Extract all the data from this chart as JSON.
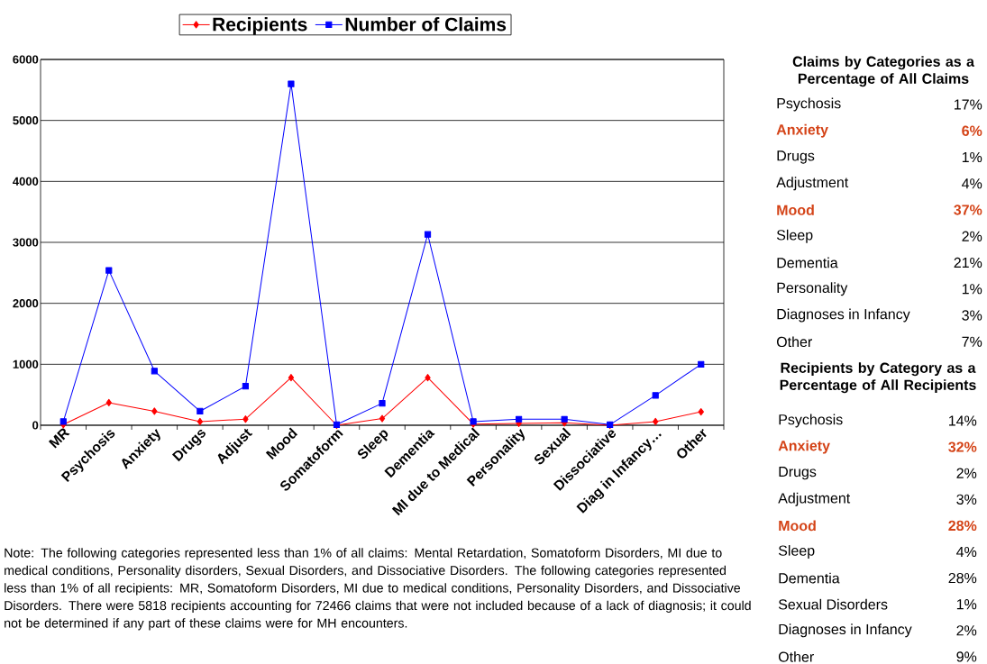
{
  "chart_data": [
    {
      "type": "line",
      "categories": [
        "MR",
        "Psychosis",
        "Anxiety",
        "Drugs",
        "Adjust",
        "Mood",
        "Somatoform",
        "Sleep",
        "Dementia",
        "MI due to Medical",
        "Personality",
        "Sexual",
        "Dissociative",
        "Diag in Infancy…",
        "Other"
      ],
      "series": [
        {
          "name": "Recipients",
          "color": "#ff0000",
          "marker": "diamond",
          "values": [
            10,
            370,
            230,
            60,
            100,
            780,
            0,
            110,
            780,
            20,
            30,
            40,
            0,
            60,
            220
          ]
        },
        {
          "name": "Number of Claims",
          "color": "#0000ff",
          "marker": "square",
          "values": [
            60,
            2540,
            890,
            230,
            640,
            5600,
            10,
            360,
            3130,
            60,
            100,
            100,
            10,
            490,
            1000
          ]
        }
      ],
      "ylim": [
        0,
        6000
      ],
      "yticks": [
        0,
        1000,
        2000,
        3000,
        4000,
        5000,
        6000
      ],
      "grid": "y",
      "legend": "top",
      "annotations": [
        "Note: The following categories represented less than 1% of all claims: Mental Retardation, Somatoform Disorders, MI due to medical conditions, Personality disorders, Sexual Disorders, and Dissociative Disorders.  The following categories represented less than 1% of all recipients: MR, Somatoform Disorders, MI due to medical conditions, Personality Disorders, and Dissociative Disorders.  There were 5818 recipients accounting for 72466 claims that were not included because of a lack of diagnosis; it could not be determined if any part of these claims were for MH encounters."
      ]
    },
    {
      "type": "other",
      "title": "Claims by Categories as a Percentage of All Claims",
      "color": "#000000",
      "categories": [
        "Psychosis",
        "Anxiety",
        "Drugs",
        "Adjustment",
        "Mood",
        "Sleep",
        "Dementia",
        "Personality",
        "Diagnoses in Infancy",
        "Other"
      ],
      "value_labels": [
        "17%",
        "6%",
        "1%",
        "4%",
        "37%",
        "2%",
        "21%",
        "1%",
        "3%",
        "7%"
      ],
      "colors": [
        "#000000",
        "#d44317",
        "#000000",
        "#000000",
        "#d44317",
        "#000000",
        "#000000",
        "#000000",
        "#000000",
        "#000000"
      ]
    },
    {
      "type": "other",
      "title": "Recipients by Category as a Percentage of All Recipients",
      "color": "#000000",
      "categories": [
        "Psychosis",
        "Anxiety",
        "Drugs",
        "Adjustment",
        "Mood",
        "Sleep",
        "Dementia",
        "Sexual Disorders",
        "Diagnoses in Infancy",
        "Other"
      ],
      "value_labels": [
        "14%",
        "32%",
        "2%",
        "3%",
        "28%",
        "4%",
        "28%",
        "1%",
        "2%",
        "9%"
      ],
      "colors": [
        "#000000",
        "#d44317",
        "#000000",
        "#000000",
        "#d44317",
        "#000000",
        "#000000",
        "#000000",
        "#000000",
        "#000000"
      ]
    }
  ]
}
